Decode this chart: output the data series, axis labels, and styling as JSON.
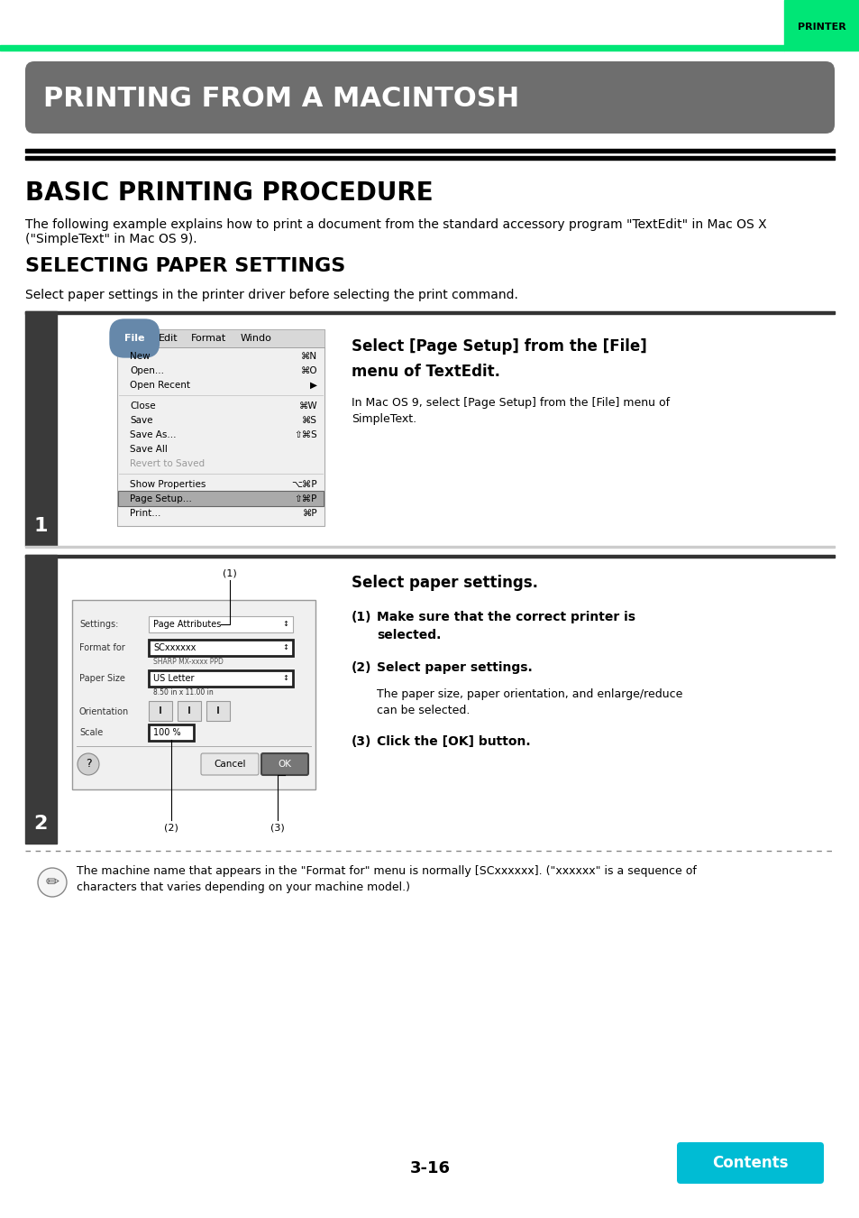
{
  "page_bg": "#ffffff",
  "header_tab_color": "#00e676",
  "header_text": "PRINTER",
  "chapter_banner_color": "#6e6e6e",
  "chapter_title": "PRINTING FROM A MACINTOSH",
  "section1_title": "BASIC PRINTING PROCEDURE",
  "section1_body_line1": "The following example explains how to print a document from the standard accessory program \"TextEdit\" in Mac OS X",
  "section1_body_line2": "(\"SimpleText\" in Mac OS 9).",
  "section2_title": "SELECTING PAPER SETTINGS",
  "section2_body": "Select paper settings in the printer driver before selecting the print command.",
  "step1_num": "1",
  "step1_right_title_line1": "Select [Page Setup] from the [File]",
  "step1_right_title_line2": "menu of TextEdit.",
  "step1_right_body_line1": "In Mac OS 9, select [Page Setup] from the [File] menu of",
  "step1_right_body_line2": "SimpleText.",
  "step2_num": "2",
  "step2_right_title": "Select paper settings.",
  "step2_right_b1a": "(1)",
  "step2_right_b1b": "Make sure that the correct printer is",
  "step2_right_b1c": "selected.",
  "step2_right_b2a": "(2)",
  "step2_right_b2b": "Select paper settings.",
  "step2_right_b2c_line1": "The paper size, paper orientation, and enlarge/reduce",
  "step2_right_b2c_line2": "can be selected.",
  "step2_right_b3a": "(3)",
  "step2_right_b3b": "Click the [OK] button.",
  "note_line1": "The machine name that appears in the \"Format for\" menu is normally [SCxxxxxx]. (\"xxxxxx\" is a sequence of",
  "note_line2": "characters that varies depending on your machine model.)",
  "page_number": "3-16",
  "contents_btn_color": "#00bcd4",
  "contents_btn_text": "Contents",
  "step_sidebar_color": "#3a3a3a"
}
